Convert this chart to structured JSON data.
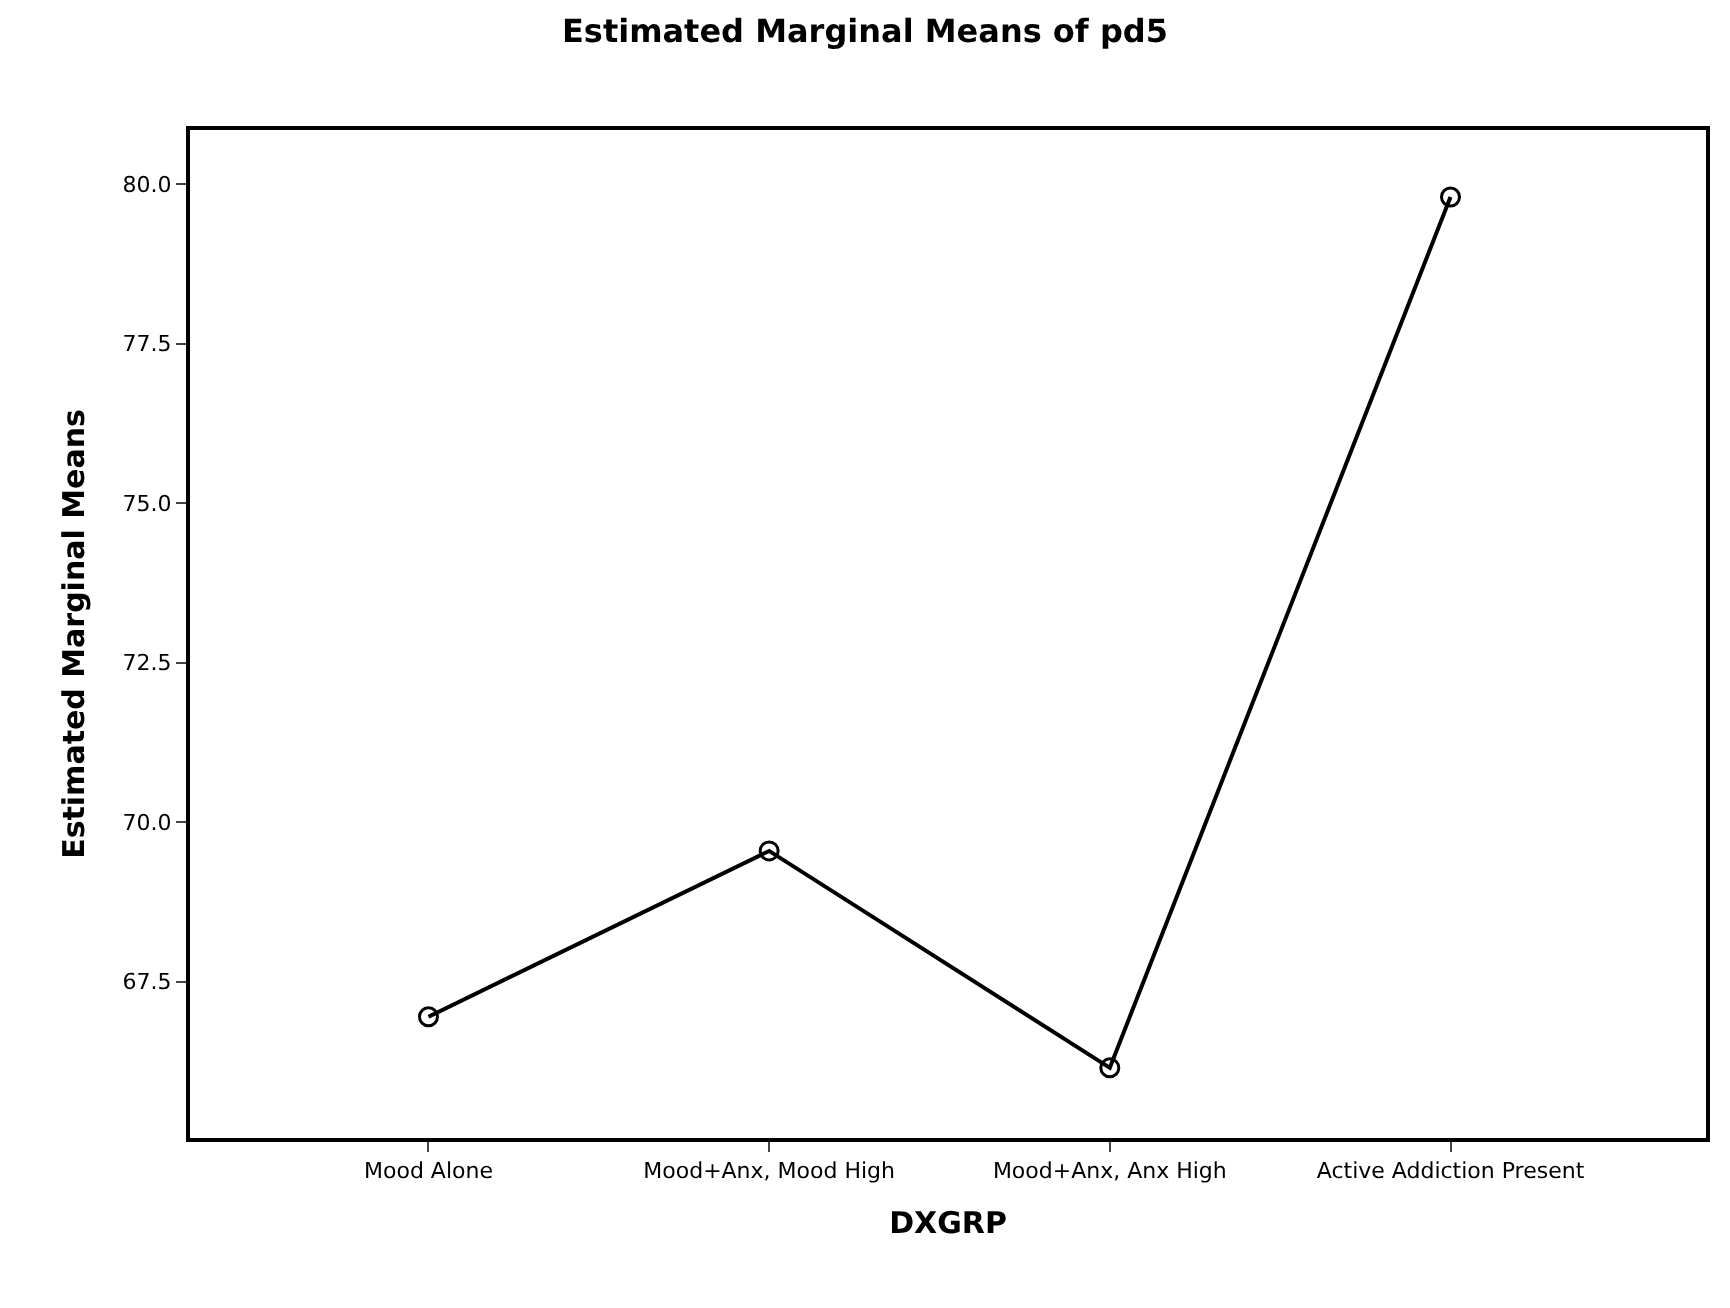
{
  "chart_data": {
    "type": "line",
    "title": "Estimated Marginal Means of pd5",
    "xlabel": "DXGRP",
    "ylabel": "Estimated Marginal Means",
    "categories": [
      "Mood Alone",
      "Mood+Anx, Mood High",
      "Mood+Anx, Anx High",
      "Active Addiction Present"
    ],
    "series": [
      {
        "color": "#000000",
        "values": [
          66.95,
          69.55,
          66.15,
          79.8
        ]
      }
    ],
    "ylim": [
      65.05,
      80.85
    ],
    "yticks": [
      67.5,
      {
        "value": 70,
        "label": "70.0"
      },
      72.5,
      {
        "value": 75,
        "label": "75.0"
      },
      77.5,
      {
        "value": 80,
        "label": "80.0"
      }
    ],
    "marker": "circle",
    "line_style": "solid"
  }
}
